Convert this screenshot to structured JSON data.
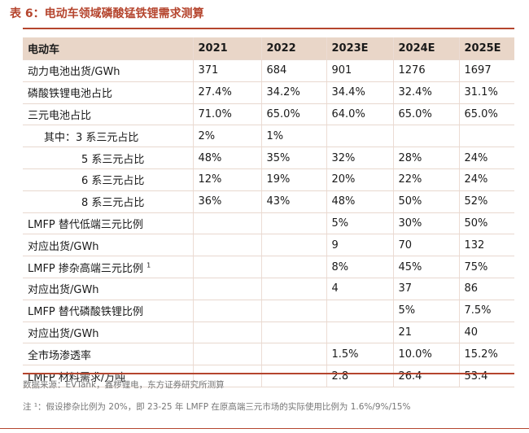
{
  "title": "表 6：电动车领域磷酸锰铁锂需求测算",
  "header": [
    "电动车",
    "2021",
    "2022",
    "2023E",
    "2024E",
    "2025E"
  ],
  "rows": [
    {
      "label": "动力电池出货/GWh",
      "cells": [
        "371",
        "684",
        "901",
        "1276",
        "1697"
      ]
    },
    {
      "label": "磷酸铁锂电池占比",
      "cells": [
        "27.4%",
        "34.2%",
        "34.4%",
        "32.4%",
        "31.1%"
      ]
    },
    {
      "label": "三元电池占比",
      "cells": [
        "71.0%",
        "65.0%",
        "64.0%",
        "65.0%",
        "65.0%"
      ]
    },
    {
      "label": "其中：3 系三元占比",
      "cells": [
        "2%",
        "1%",
        "",
        "",
        ""
      ]
    },
    {
      "label": "5 系三元占比",
      "cells": [
        "48%",
        "35%",
        "32%",
        "28%",
        "24%"
      ]
    },
    {
      "label": "6 系三元占比",
      "cells": [
        "12%",
        "19%",
        "20%",
        "22%",
        "24%"
      ]
    },
    {
      "label": "8 系三元占比",
      "cells": [
        "36%",
        "43%",
        "48%",
        "50%",
        "52%"
      ]
    },
    {
      "label": "LMFP 替代低端三元比例",
      "cells": [
        "",
        "",
        "5%",
        "30%",
        "50%"
      ]
    },
    {
      "label": "对应出货/GWh",
      "cells": [
        "",
        "",
        "9",
        "70",
        "132"
      ]
    },
    {
      "label": "LMFP 掺杂高端三元比例",
      "sup": "1",
      "cells": [
        "",
        "",
        "8%",
        "45%",
        "75%"
      ]
    },
    {
      "label": "对应出货/GWh",
      "cells": [
        "",
        "",
        "4",
        "37",
        "86"
      ]
    },
    {
      "label": "LMFP 替代磷酸铁锂比例",
      "cells": [
        "",
        "",
        "",
        "5%",
        "7.5%"
      ]
    },
    {
      "label": "对应出货/GWh",
      "cells": [
        "",
        "",
        "",
        "21",
        "40"
      ]
    },
    {
      "label": "全市场渗透率",
      "cells": [
        "",
        "",
        "1.5%",
        "10.0%",
        "15.2%"
      ]
    },
    {
      "label": "LMFP 材料需求/万吨",
      "cells": [
        "",
        "",
        "2.8",
        "26.4",
        "53.4"
      ]
    }
  ],
  "source": "数据来源：EVTank，鑫椤锂电，东方证券研究所测算",
  "note": "注 ¹：假设掺杂比例为 20%，即 23-25 年 LMFP 在原高端三元市场的实际使用比例为 1.6%/9%/15%"
}
